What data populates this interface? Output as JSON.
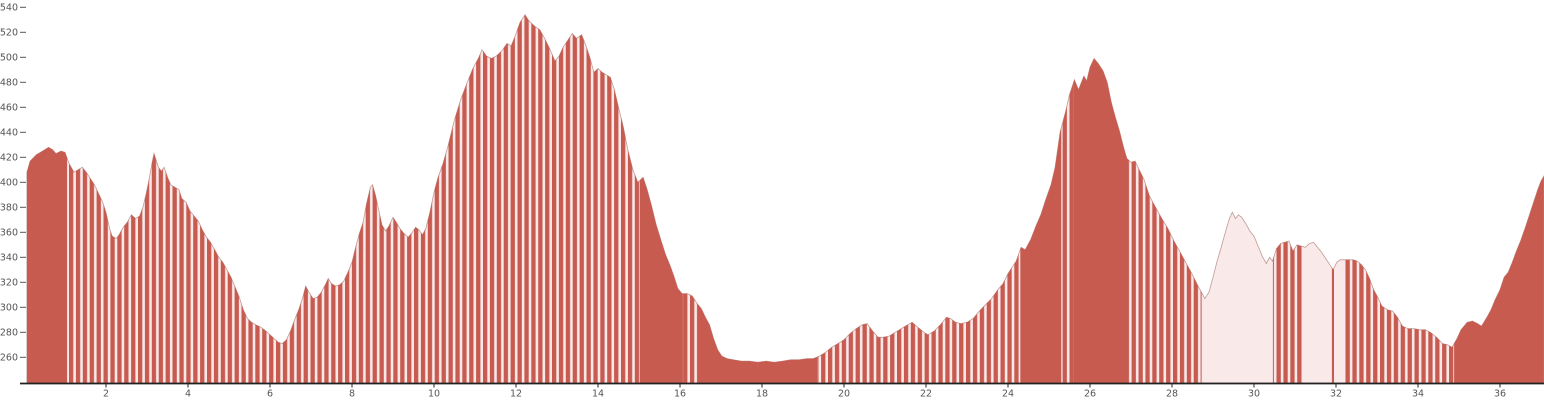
{
  "chart_data": {
    "type": "area",
    "title": "",
    "xlabel": "",
    "ylabel": "",
    "xlim": [
      0,
      37.07
    ],
    "ylim": [
      240,
      540
    ],
    "grid": false,
    "legend": "none",
    "x_ticks": [
      2,
      4,
      6,
      8,
      10,
      12,
      14,
      16,
      18,
      20,
      22,
      24,
      26,
      28,
      30,
      32,
      34,
      36
    ],
    "y_ticks": [
      260,
      280,
      300,
      320,
      340,
      360,
      380,
      400,
      420,
      440,
      460,
      480,
      500,
      520,
      540
    ],
    "colors": {
      "bar_red": "#C75B50",
      "pale_fill": "#F9E9E9",
      "profile_outline": "#C09B97",
      "axis_line": "#222222",
      "tick_text": "#555555"
    },
    "fill_segments": [
      {
        "from": 0.07,
        "to": 1.05,
        "mode": "solid"
      },
      {
        "from": 1.05,
        "to": 15.02,
        "mode": "striped"
      },
      {
        "from": 15.02,
        "to": 16.07,
        "mode": "solid"
      },
      {
        "from": 16.07,
        "to": 16.42,
        "mode": "striped"
      },
      {
        "from": 16.42,
        "to": 19.35,
        "mode": "solid"
      },
      {
        "from": 19.35,
        "to": 24.3,
        "mode": "striped"
      },
      {
        "from": 24.3,
        "to": 25.3,
        "mode": "solid"
      },
      {
        "from": 25.3,
        "to": 25.6,
        "mode": "striped"
      },
      {
        "from": 25.6,
        "to": 26.95,
        "mode": "solid"
      },
      {
        "from": 26.95,
        "to": 28.72,
        "mode": "striped"
      },
      {
        "from": 31.9,
        "to": 31.95,
        "mode": "solid"
      },
      {
        "from": 30.46,
        "to": 31.17,
        "mode": "striped"
      },
      {
        "from": 32.2,
        "to": 34.88,
        "mode": "striped"
      },
      {
        "from": 34.88,
        "to": 37.07,
        "mode": "solid"
      }
    ],
    "points": [
      [
        0.07,
        408
      ],
      [
        0.15,
        417
      ],
      [
        0.3,
        422
      ],
      [
        0.45,
        425
      ],
      [
        0.6,
        428
      ],
      [
        0.7,
        426
      ],
      [
        0.78,
        423
      ],
      [
        0.9,
        425
      ],
      [
        1.0,
        424
      ],
      [
        1.1,
        415
      ],
      [
        1.22,
        408
      ],
      [
        1.32,
        410
      ],
      [
        1.42,
        412
      ],
      [
        1.52,
        408
      ],
      [
        1.62,
        403
      ],
      [
        1.72,
        398
      ],
      [
        1.82,
        391
      ],
      [
        1.92,
        384
      ],
      [
        2.0,
        376
      ],
      [
        2.08,
        364
      ],
      [
        2.15,
        357
      ],
      [
        2.25,
        355
      ],
      [
        2.32,
        358
      ],
      [
        2.42,
        364
      ],
      [
        2.52,
        368
      ],
      [
        2.62,
        374
      ],
      [
        2.72,
        371
      ],
      [
        2.82,
        373
      ],
      [
        2.9,
        380
      ],
      [
        2.98,
        391
      ],
      [
        3.06,
        404
      ],
      [
        3.12,
        415
      ],
      [
        3.17,
        423
      ],
      [
        3.22,
        418
      ],
      [
        3.28,
        412
      ],
      [
        3.35,
        409
      ],
      [
        3.42,
        412
      ],
      [
        3.5,
        404
      ],
      [
        3.58,
        398
      ],
      [
        3.68,
        396
      ],
      [
        3.78,
        394
      ],
      [
        3.85,
        387
      ],
      [
        3.95,
        384
      ],
      [
        4.05,
        377
      ],
      [
        4.15,
        373
      ],
      [
        4.25,
        369
      ],
      [
        4.35,
        362
      ],
      [
        4.45,
        356
      ],
      [
        4.55,
        352
      ],
      [
        4.65,
        346
      ],
      [
        4.75,
        340
      ],
      [
        4.85,
        336
      ],
      [
        4.95,
        330
      ],
      [
        5.05,
        324
      ],
      [
        5.15,
        316
      ],
      [
        5.25,
        308
      ],
      [
        5.35,
        298
      ],
      [
        5.45,
        291
      ],
      [
        5.55,
        288
      ],
      [
        5.65,
        286
      ],
      [
        5.78,
        284
      ],
      [
        5.9,
        281
      ],
      [
        6.0,
        278
      ],
      [
        6.1,
        275
      ],
      [
        6.2,
        272
      ],
      [
        6.3,
        271
      ],
      [
        6.4,
        274
      ],
      [
        6.5,
        281
      ],
      [
        6.6,
        290
      ],
      [
        6.7,
        298
      ],
      [
        6.8,
        308
      ],
      [
        6.87,
        317
      ],
      [
        6.95,
        312
      ],
      [
        7.05,
        307
      ],
      [
        7.15,
        308
      ],
      [
        7.25,
        312
      ],
      [
        7.35,
        318
      ],
      [
        7.42,
        323
      ],
      [
        7.5,
        319
      ],
      [
        7.6,
        317
      ],
      [
        7.7,
        318
      ],
      [
        7.8,
        321
      ],
      [
        7.9,
        328
      ],
      [
        8.0,
        336
      ],
      [
        8.08,
        347
      ],
      [
        8.17,
        358
      ],
      [
        8.27,
        368
      ],
      [
        8.35,
        382
      ],
      [
        8.45,
        396
      ],
      [
        8.5,
        398
      ],
      [
        8.57,
        390
      ],
      [
        8.65,
        378
      ],
      [
        8.73,
        366
      ],
      [
        8.82,
        361
      ],
      [
        8.9,
        365
      ],
      [
        9.0,
        372
      ],
      [
        9.08,
        368
      ],
      [
        9.17,
        363
      ],
      [
        9.27,
        359
      ],
      [
        9.37,
        356
      ],
      [
        9.47,
        360
      ],
      [
        9.55,
        364
      ],
      [
        9.63,
        362
      ],
      [
        9.72,
        358
      ],
      [
        9.8,
        363
      ],
      [
        9.9,
        376
      ],
      [
        10.0,
        392
      ],
      [
        10.1,
        404
      ],
      [
        10.22,
        415
      ],
      [
        10.35,
        430
      ],
      [
        10.5,
        450
      ],
      [
        10.65,
        466
      ],
      [
        10.8,
        479
      ],
      [
        10.95,
        491
      ],
      [
        11.08,
        499
      ],
      [
        11.17,
        506
      ],
      [
        11.28,
        501
      ],
      [
        11.4,
        499
      ],
      [
        11.52,
        501
      ],
      [
        11.65,
        505
      ],
      [
        11.78,
        511
      ],
      [
        11.88,
        509
      ],
      [
        11.98,
        517
      ],
      [
        12.1,
        528
      ],
      [
        12.22,
        534
      ],
      [
        12.32,
        529
      ],
      [
        12.45,
        525
      ],
      [
        12.58,
        522
      ],
      [
        12.7,
        515
      ],
      [
        12.82,
        507
      ],
      [
        12.95,
        497
      ],
      [
        13.05,
        501
      ],
      [
        13.15,
        508
      ],
      [
        13.27,
        514
      ],
      [
        13.37,
        519
      ],
      [
        13.48,
        515
      ],
      [
        13.6,
        518
      ],
      [
        13.7,
        510
      ],
      [
        13.8,
        500
      ],
      [
        13.9,
        488
      ],
      [
        14.0,
        491
      ],
      [
        14.1,
        488
      ],
      [
        14.2,
        486
      ],
      [
        14.3,
        484
      ],
      [
        14.4,
        474
      ],
      [
        14.5,
        460
      ],
      [
        14.62,
        444
      ],
      [
        14.72,
        427
      ],
      [
        14.85,
        410
      ],
      [
        14.97,
        400
      ],
      [
        15.1,
        404
      ],
      [
        15.2,
        394
      ],
      [
        15.3,
        382
      ],
      [
        15.42,
        366
      ],
      [
        15.55,
        352
      ],
      [
        15.65,
        342
      ],
      [
        15.75,
        334
      ],
      [
        15.85,
        325
      ],
      [
        15.95,
        315
      ],
      [
        16.05,
        311
      ],
      [
        16.18,
        311
      ],
      [
        16.3,
        309
      ],
      [
        16.42,
        303
      ],
      [
        16.52,
        299
      ],
      [
        16.62,
        292
      ],
      [
        16.72,
        286
      ],
      [
        16.82,
        275
      ],
      [
        16.92,
        266
      ],
      [
        17.02,
        261
      ],
      [
        17.15,
        259
      ],
      [
        17.3,
        258
      ],
      [
        17.5,
        257
      ],
      [
        17.7,
        257
      ],
      [
        17.9,
        256
      ],
      [
        18.1,
        257
      ],
      [
        18.3,
        256
      ],
      [
        18.5,
        257
      ],
      [
        18.7,
        258
      ],
      [
        18.9,
        258
      ],
      [
        19.1,
        259
      ],
      [
        19.25,
        259
      ],
      [
        19.4,
        261
      ],
      [
        19.55,
        264
      ],
      [
        19.7,
        268
      ],
      [
        19.85,
        271
      ],
      [
        20.0,
        274
      ],
      [
        20.15,
        279
      ],
      [
        20.3,
        283
      ],
      [
        20.45,
        286
      ],
      [
        20.56,
        287
      ],
      [
        20.7,
        281
      ],
      [
        20.83,
        276
      ],
      [
        20.95,
        276
      ],
      [
        21.1,
        277
      ],
      [
        21.25,
        280
      ],
      [
        21.4,
        283
      ],
      [
        21.55,
        286
      ],
      [
        21.66,
        288
      ],
      [
        21.8,
        284
      ],
      [
        21.95,
        280
      ],
      [
        22.05,
        278
      ],
      [
        22.2,
        281
      ],
      [
        22.35,
        286
      ],
      [
        22.5,
        292
      ],
      [
        22.6,
        291
      ],
      [
        22.72,
        288
      ],
      [
        22.85,
        287
      ],
      [
        23.0,
        288
      ],
      [
        23.15,
        291
      ],
      [
        23.3,
        297
      ],
      [
        23.45,
        302
      ],
      [
        23.6,
        307
      ],
      [
        23.75,
        314
      ],
      [
        23.88,
        319
      ],
      [
        24.0,
        327
      ],
      [
        24.1,
        332
      ],
      [
        24.2,
        337
      ],
      [
        24.32,
        348
      ],
      [
        24.42,
        346
      ],
      [
        24.55,
        354
      ],
      [
        24.68,
        365
      ],
      [
        24.8,
        374
      ],
      [
        24.92,
        386
      ],
      [
        25.05,
        398
      ],
      [
        25.15,
        412
      ],
      [
        25.27,
        440
      ],
      [
        25.4,
        456
      ],
      [
        25.5,
        470
      ],
      [
        25.62,
        482
      ],
      [
        25.72,
        474
      ],
      [
        25.85,
        485
      ],
      [
        25.92,
        481
      ],
      [
        26.0,
        492
      ],
      [
        26.1,
        499
      ],
      [
        26.2,
        495
      ],
      [
        26.32,
        489
      ],
      [
        26.42,
        480
      ],
      [
        26.52,
        464
      ],
      [
        26.62,
        452
      ],
      [
        26.72,
        441
      ],
      [
        26.82,
        428
      ],
      [
        26.9,
        419
      ],
      [
        27.0,
        416
      ],
      [
        27.1,
        417
      ],
      [
        27.2,
        410
      ],
      [
        27.32,
        402
      ],
      [
        27.45,
        389
      ],
      [
        27.6,
        380
      ],
      [
        27.75,
        371
      ],
      [
        27.9,
        363
      ],
      [
        28.05,
        353
      ],
      [
        28.2,
        344
      ],
      [
        28.35,
        335
      ],
      [
        28.5,
        326
      ],
      [
        28.62,
        318
      ],
      [
        28.72,
        312
      ],
      [
        28.8,
        307
      ],
      [
        28.9,
        312
      ],
      [
        29.0,
        324
      ],
      [
        29.1,
        337
      ],
      [
        29.2,
        348
      ],
      [
        29.3,
        360
      ],
      [
        29.4,
        371
      ],
      [
        29.47,
        376
      ],
      [
        29.55,
        371
      ],
      [
        29.62,
        374
      ],
      [
        29.7,
        372
      ],
      [
        29.8,
        367
      ],
      [
        29.9,
        361
      ],
      [
        30.0,
        357
      ],
      [
        30.1,
        349
      ],
      [
        30.2,
        341
      ],
      [
        30.3,
        335
      ],
      [
        30.38,
        340
      ],
      [
        30.45,
        337
      ],
      [
        30.55,
        347
      ],
      [
        30.65,
        351
      ],
      [
        30.75,
        352
      ],
      [
        30.85,
        353
      ],
      [
        30.95,
        345
      ],
      [
        31.05,
        350
      ],
      [
        31.15,
        349
      ],
      [
        31.25,
        348
      ],
      [
        31.35,
        351
      ],
      [
        31.45,
        352
      ],
      [
        31.55,
        348
      ],
      [
        31.65,
        344
      ],
      [
        31.75,
        339
      ],
      [
        31.85,
        334
      ],
      [
        31.93,
        330
      ],
      [
        32.02,
        336
      ],
      [
        32.1,
        338
      ],
      [
        32.2,
        338
      ],
      [
        32.3,
        338
      ],
      [
        32.42,
        338
      ],
      [
        32.52,
        337
      ],
      [
        32.62,
        334
      ],
      [
        32.72,
        330
      ],
      [
        32.82,
        323
      ],
      [
        32.92,
        314
      ],
      [
        33.02,
        308
      ],
      [
        33.12,
        301
      ],
      [
        33.25,
        298
      ],
      [
        33.38,
        297
      ],
      [
        33.5,
        292
      ],
      [
        33.62,
        285
      ],
      [
        33.75,
        283
      ],
      [
        33.9,
        283
      ],
      [
        34.05,
        282
      ],
      [
        34.18,
        282
      ],
      [
        34.3,
        280
      ],
      [
        34.45,
        276
      ],
      [
        34.6,
        271
      ],
      [
        34.72,
        270
      ],
      [
        34.83,
        268
      ],
      [
        34.95,
        275
      ],
      [
        35.05,
        282
      ],
      [
        35.2,
        288
      ],
      [
        35.33,
        289
      ],
      [
        35.45,
        287
      ],
      [
        35.55,
        285
      ],
      [
        35.68,
        292
      ],
      [
        35.78,
        298
      ],
      [
        35.88,
        306
      ],
      [
        36.0,
        314
      ],
      [
        36.1,
        324
      ],
      [
        36.2,
        328
      ],
      [
        36.3,
        336
      ],
      [
        36.4,
        345
      ],
      [
        36.5,
        353
      ],
      [
        36.62,
        364
      ],
      [
        36.72,
        374
      ],
      [
        36.82,
        384
      ],
      [
        36.92,
        394
      ],
      [
        37.0,
        401
      ],
      [
        37.07,
        405
      ]
    ]
  }
}
